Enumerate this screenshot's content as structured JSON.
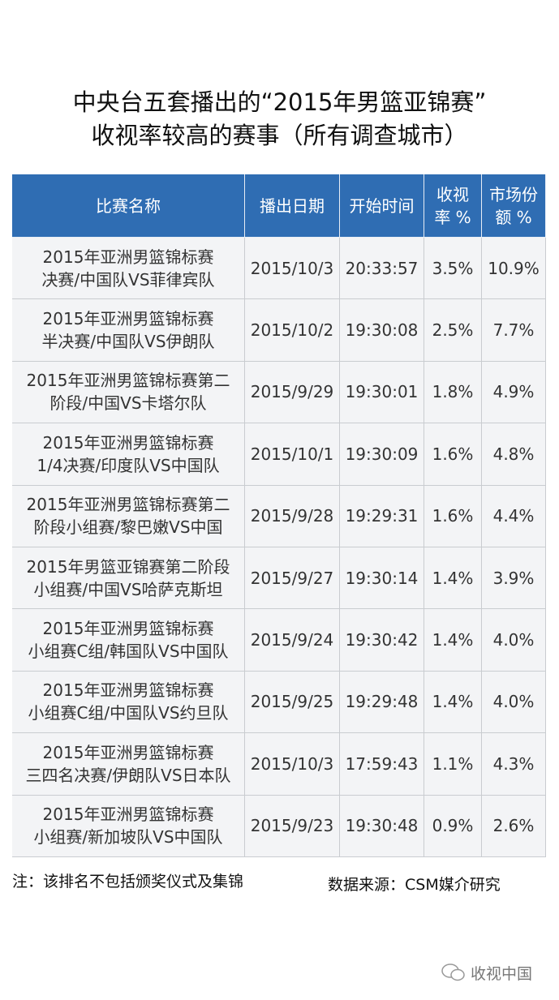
{
  "header": {
    "title": [
      "中央台五套播出的“2015年男篮亚锦赛”",
      "收视率较高的赛事（所有调查城市）"
    ]
  },
  "table": {
    "columns": [
      [
        "比赛名称"
      ],
      [
        "播出日期"
      ],
      [
        "开始时间"
      ],
      [
        "收视",
        "率 %"
      ],
      [
        "市场份",
        "额 %"
      ]
    ],
    "rows": [
      [
        [
          "2015年亚洲男篮锦标赛",
          "决赛/中国队VS菲律宾队"
        ],
        "2015/10/3",
        "20:33:57",
        "3.5%",
        "10.9%"
      ],
      [
        [
          "2015年亚洲男篮锦标赛",
          "半决赛/中国队VS伊朗队"
        ],
        "2015/10/2",
        "19:30:08",
        "2.5%",
        "7.7%"
      ],
      [
        [
          "2015年亚洲男篮锦标赛第二",
          "阶段/中国VS卡塔尔队"
        ],
        "2015/9/29",
        "19:30:01",
        "1.8%",
        "4.9%"
      ],
      [
        [
          "2015年亚洲男篮锦标赛",
          "1/4决赛/印度队VS中国队"
        ],
        "2015/10/1",
        "19:30:09",
        "1.6%",
        "4.8%"
      ],
      [
        [
          "2015年亚洲男篮锦标赛第二",
          "阶段小组赛/黎巴嫩VS中国"
        ],
        "2015/9/28",
        "19:29:31",
        "1.6%",
        "4.4%"
      ],
      [
        [
          "2015年男篮亚锦赛第二阶段",
          "小组赛/中国VS哈萨克斯坦"
        ],
        "2015/9/27",
        "19:30:14",
        "1.4%",
        "3.9%"
      ],
      [
        [
          "2015年亚洲男篮锦标赛",
          "小组赛C组/韩国队VS中国队"
        ],
        "2015/9/24",
        "19:30:42",
        "1.4%",
        "4.0%"
      ],
      [
        [
          "2015年亚洲男篮锦标赛",
          "小组赛C组/中国队VS约旦队"
        ],
        "2015/9/25",
        "19:29:48",
        "1.4%",
        "4.0%"
      ],
      [
        [
          "2015年亚洲男篮锦标赛",
          "三四名决赛/伊朗队VS日本队"
        ],
        "2015/10/3",
        "17:59:43",
        "1.1%",
        "4.3%"
      ],
      [
        [
          "2015年亚洲男篮锦标赛",
          "小组赛/新加坡队VS中国队"
        ],
        "2015/9/23",
        "19:30:48",
        "0.9%",
        "2.6%"
      ]
    ]
  },
  "footer": {
    "note": "注：该排名不包括颁奖仪式及集锦",
    "source": "数据来源：CSM媒介研究"
  },
  "watermark": "收视中国"
}
